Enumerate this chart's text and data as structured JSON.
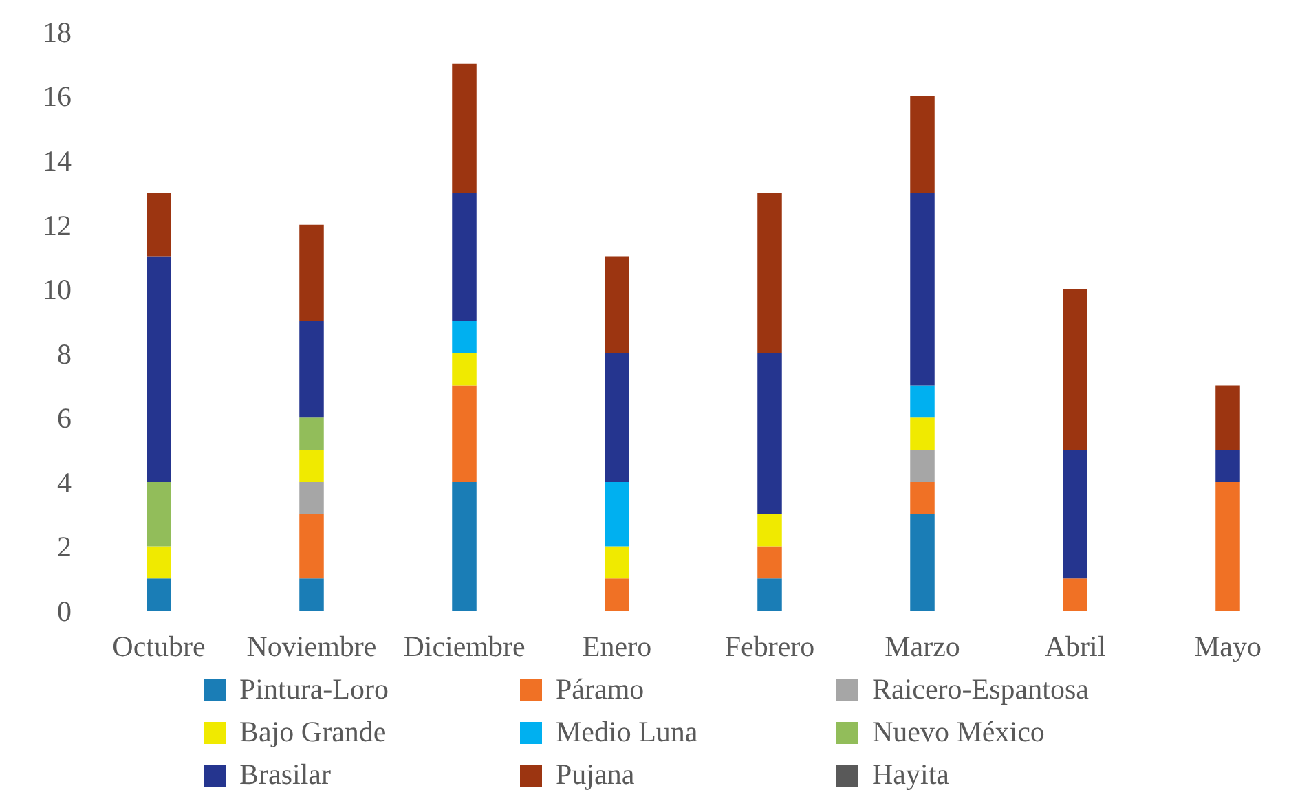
{
  "chart_data": {
    "type": "bar",
    "stacked": true,
    "categories": [
      "Octubre",
      "Noviembre",
      "Diciembre",
      "Enero",
      "Febrero",
      "Marzo",
      "Abril",
      "Mayo"
    ],
    "ylim": [
      0,
      18
    ],
    "yticks": [
      0,
      2,
      4,
      6,
      8,
      10,
      12,
      14,
      16,
      18
    ],
    "grid": false,
    "legend": "bottom",
    "series": [
      {
        "name": "Pintura-Loro",
        "color": "#1a7db6",
        "values": [
          1,
          1,
          4,
          0,
          1,
          3,
          0,
          0
        ]
      },
      {
        "name": "Páramo",
        "color": "#f07125",
        "values": [
          0,
          2,
          3,
          1,
          1,
          1,
          1,
          4
        ]
      },
      {
        "name": "Raicero-Espantosa",
        "color": "#a6a6a6",
        "values": [
          0,
          1,
          0,
          0,
          0,
          1,
          0,
          0
        ]
      },
      {
        "name": "Bajo Grande",
        "color": "#f0ea00",
        "values": [
          1,
          1,
          1,
          1,
          1,
          1,
          0,
          0
        ]
      },
      {
        "name": "Medio Luna",
        "color": "#00b0f0",
        "values": [
          0,
          0,
          1,
          2,
          0,
          1,
          0,
          0
        ]
      },
      {
        "name": "Nuevo México",
        "color": "#92bd5a",
        "values": [
          2,
          1,
          0,
          0,
          0,
          0,
          0,
          0
        ]
      },
      {
        "name": "Brasilar",
        "color": "#25358f",
        "values": [
          7,
          3,
          4,
          4,
          5,
          6,
          4,
          1
        ]
      },
      {
        "name": "Pujana",
        "color": "#9c3511",
        "values": [
          2,
          3,
          4,
          3,
          5,
          3,
          5,
          2
        ]
      },
      {
        "name": "Hayita",
        "color": "#595959",
        "values": [
          0,
          0,
          0,
          0,
          0,
          0,
          0,
          0
        ]
      }
    ]
  }
}
